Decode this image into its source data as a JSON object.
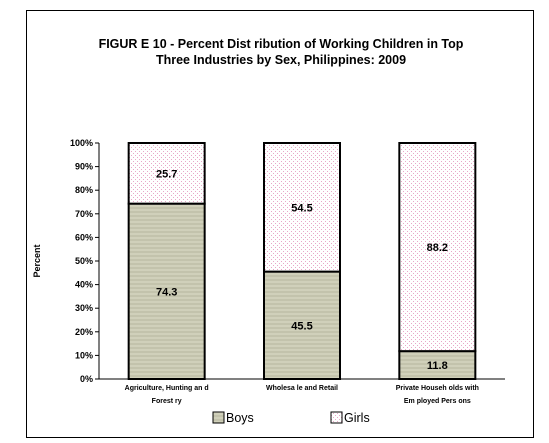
{
  "chart_data": {
    "type": "bar",
    "stacked": true,
    "title_lines": [
      "FIGUR E 10 - Percent Dist ribution of Working Children in Top",
      "Three Industries by Sex, Philippines: 2009"
    ],
    "ylabel": "Percent",
    "ylim": [
      0,
      100
    ],
    "yticks": [
      "0%",
      "10%",
      "20%",
      "30%",
      "40%",
      "50%",
      "60%",
      "70%",
      "80%",
      "90%",
      "100%"
    ],
    "categories": [
      [
        "Agriculture, Hunting an d",
        "Forest ry"
      ],
      [
        "Wholesa le  and Retail"
      ],
      [
        "Private Househ olds with",
        "Em ployed Pers ons"
      ]
    ],
    "series": [
      {
        "name": "Boys",
        "values": [
          74.3,
          45.5,
          11.8
        ],
        "color": "#d6d6c0"
      },
      {
        "name": "Girls",
        "values": [
          25.7,
          54.5,
          88.2
        ],
        "color": "#fbe6f0"
      }
    ],
    "data_labels": [
      [
        "74.3",
        "45.5",
        "11.8"
      ],
      [
        "25.7",
        "54.5",
        "88.2"
      ]
    ],
    "legend_position": "bottom"
  }
}
